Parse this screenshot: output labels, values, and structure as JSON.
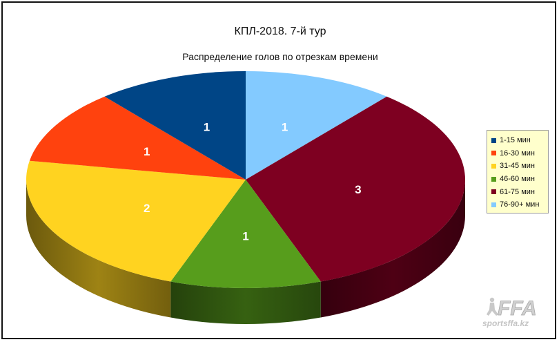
{
  "chart_data": {
    "type": "pie",
    "title": "КПЛ-2018. 7-й тур",
    "subtitle": "Распределение голов по отрезкам времени",
    "categories": [
      "1-15 мин",
      "16-30 мин",
      "31-45 мин",
      "46-60 мин",
      "61-75 мин",
      "76-90+ мин"
    ],
    "values": [
      1,
      1,
      2,
      1,
      3,
      1
    ],
    "colors": [
      "#004586",
      "#ff420e",
      "#ffd320",
      "#579d1c",
      "#7e0021",
      "#83caff"
    ],
    "legend_position": "right",
    "three_d": true,
    "data_labels": true
  },
  "watermark": {
    "logo_text": "FFA",
    "site_text": "sportsffa.kz"
  }
}
